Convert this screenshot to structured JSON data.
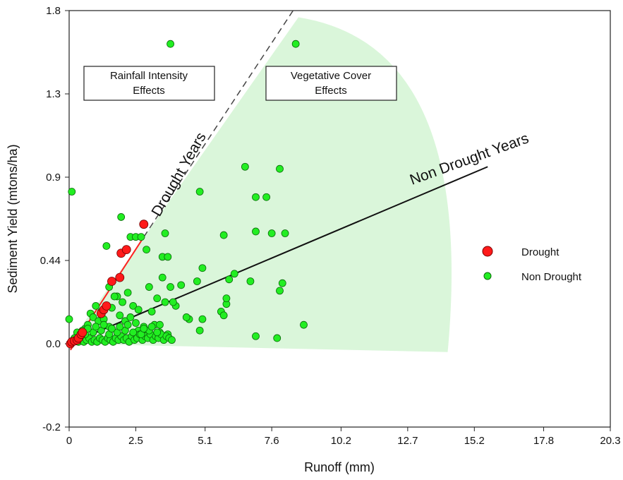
{
  "chart_data": {
    "type": "scatter",
    "xlabel": "Runoff (mm)",
    "ylabel": "Sediment Yield (mtons/ha)",
    "xlim": [
      0,
      20.3
    ],
    "ylim": [
      -0.2,
      1.8
    ],
    "x_ticks": [
      "0",
      "2.5",
      "5.1",
      "7.6",
      "10.2",
      "12.7",
      "15.2",
      "17.8",
      "20.3"
    ],
    "y_ticks": [
      "-0.2",
      "0.0",
      "0.44",
      "0.9",
      "1.3",
      "1.8"
    ],
    "legend_position": "right",
    "grid": false,
    "annotations": {
      "rainfall_box": [
        "Rainfall Intensity",
        "Effects"
      ],
      "vegetative_box": [
        "Vegetative Cover",
        "Effects"
      ],
      "drought_line_label": "Drought Years",
      "non_drought_line_label": "Non Drought Years"
    },
    "colors": {
      "drought": "#ff1a1a",
      "non_drought": "#22ee22",
      "drought_line": "#ff2020",
      "non_drought_line": "#111111",
      "shade": "#d4f5d4"
    },
    "trend_lines": [
      {
        "name": "Drought Years",
        "x": [
          0.05,
          2.8
        ],
        "y": [
          -0.015,
          0.57
        ],
        "extended_x": [
          2.8,
          8.4
        ],
        "extended_y": [
          0.57,
          1.8
        ],
        "style": "dashed-extension"
      },
      {
        "name": "Non Drought Years",
        "x": [
          0,
          15.7
        ],
        "y": [
          0.0,
          0.95
        ]
      }
    ],
    "shaded_region": {
      "apex": [
        0,
        0
      ],
      "edge_end": [
        14.2,
        -0.02
      ],
      "upper": [
        8.6,
        1.76
      ]
    },
    "series": [
      {
        "name": "Drought",
        "x": [
          0.05,
          0.1,
          0.2,
          0.3,
          0.35,
          0.45,
          0.5,
          1.2,
          1.3,
          1.4,
          1.6,
          1.9,
          1.95,
          2.15,
          2.8
        ],
        "y": [
          0.0,
          0.01,
          0.015,
          0.02,
          0.03,
          0.05,
          0.06,
          0.16,
          0.18,
          0.2,
          0.33,
          0.35,
          0.48,
          0.5,
          0.64
        ]
      },
      {
        "name": "Non Drought",
        "x": [
          3.8,
          8.5,
          0.1,
          6.6,
          7.9,
          4.9,
          7.0,
          7.4,
          1.95,
          2.3,
          2.5,
          2.7,
          2.9,
          1.4,
          3.6,
          3.5,
          3.7,
          7.0,
          7.6,
          8.1,
          5.8,
          3.5,
          3.8,
          5.0,
          6.2,
          6.0,
          4.2,
          6.8,
          3.6,
          4.0,
          8.0,
          7.9,
          3.0,
          3.3,
          3.9,
          4.8,
          2.2,
          1.8,
          2.0,
          5.7,
          5.9,
          5.9,
          5.8,
          4.5,
          5.0,
          1.5,
          1.7,
          1.0,
          2.4,
          2.6,
          3.1,
          4.4,
          0.0,
          4.9,
          8.8,
          7.0,
          7.8,
          1.2,
          1.9,
          1.6,
          0.8,
          0.9,
          2.1,
          2.3,
          2.8,
          3.2,
          0.6,
          0.7,
          1.1,
          1.3,
          2.6,
          3.7,
          0.3,
          0.4,
          0.5,
          1.5,
          2.9,
          3.4,
          0.2,
          0.25,
          0.35,
          0.45,
          0.55,
          0.65,
          0.75,
          0.85,
          0.95,
          1.05,
          1.15,
          1.25,
          1.35,
          1.45,
          1.55,
          1.65,
          1.75,
          1.85,
          1.95,
          2.05,
          2.15,
          2.25,
          2.35,
          2.45,
          2.55,
          2.65,
          2.75,
          2.85,
          2.95,
          3.05,
          3.15,
          3.25,
          3.35,
          3.45,
          3.55,
          3.65,
          3.75,
          3.85,
          0.6,
          0.9,
          1.2,
          1.5,
          1.8,
          2.1,
          2.4,
          2.7,
          3.0,
          3.3,
          0.7,
          1.0,
          1.3,
          1.6,
          1.9,
          2.2,
          2.5,
          2.8,
          3.1,
          3.4
        ],
        "y": [
          1.6,
          1.6,
          0.82,
          0.95,
          0.94,
          0.82,
          0.79,
          0.79,
          0.68,
          0.57,
          0.57,
          0.57,
          0.5,
          0.52,
          0.59,
          0.46,
          0.46,
          0.6,
          0.59,
          0.59,
          0.58,
          0.35,
          0.3,
          0.4,
          0.37,
          0.34,
          0.31,
          0.33,
          0.22,
          0.2,
          0.32,
          0.28,
          0.3,
          0.24,
          0.22,
          0.33,
          0.27,
          0.25,
          0.22,
          0.17,
          0.21,
          0.24,
          0.15,
          0.13,
          0.13,
          0.3,
          0.25,
          0.2,
          0.2,
          0.18,
          0.17,
          0.14,
          0.13,
          0.07,
          0.1,
          0.04,
          0.03,
          0.17,
          0.15,
          0.19,
          0.16,
          0.14,
          0.12,
          0.14,
          0.09,
          0.1,
          0.08,
          0.1,
          0.12,
          0.13,
          0.07,
          0.05,
          0.06,
          0.04,
          0.07,
          0.09,
          0.05,
          0.06,
          0.03,
          0.02,
          0.01,
          0.02,
          0.01,
          0.02,
          0.03,
          0.01,
          0.02,
          0.01,
          0.03,
          0.02,
          0.01,
          0.03,
          0.02,
          0.01,
          0.03,
          0.02,
          0.04,
          0.02,
          0.03,
          0.01,
          0.04,
          0.02,
          0.03,
          0.05,
          0.02,
          0.04,
          0.03,
          0.05,
          0.02,
          0.04,
          0.03,
          0.05,
          0.02,
          0.04,
          0.03,
          0.02,
          0.05,
          0.06,
          0.07,
          0.05,
          0.06,
          0.07,
          0.06,
          0.05,
          0.07,
          0.06,
          0.08,
          0.09,
          0.1,
          0.08,
          0.09,
          0.1,
          0.11,
          0.08,
          0.09,
          0.1
        ]
      }
    ]
  }
}
